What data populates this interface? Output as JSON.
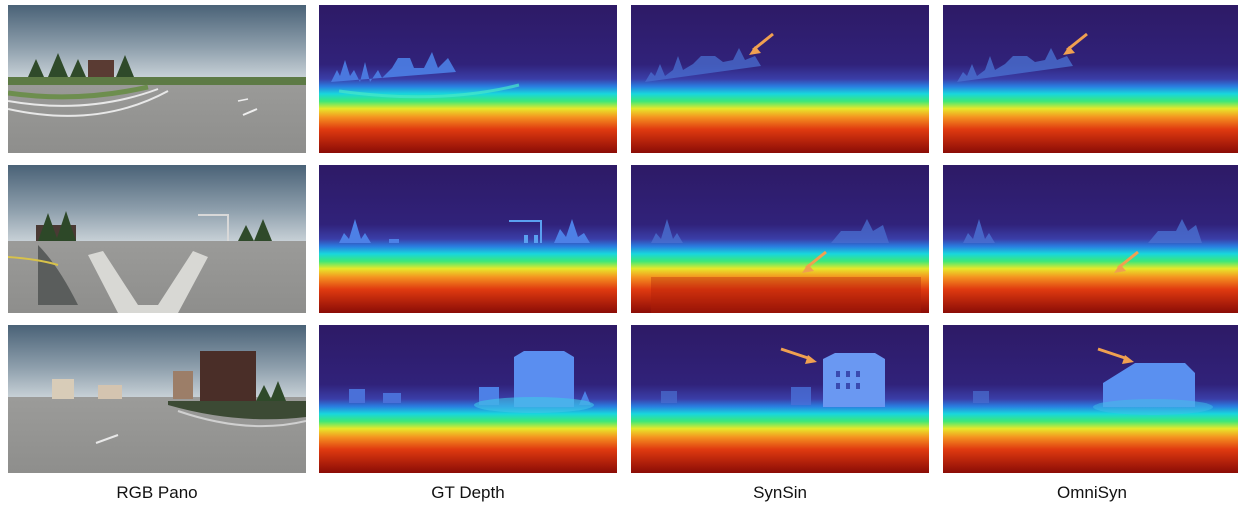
{
  "columns": [
    {
      "label": "RGB Pano"
    },
    {
      "label": "GT Depth"
    },
    {
      "label": "SynSin"
    },
    {
      "label": "OmniSyn"
    }
  ],
  "annotation_arrow_color": "#f0a050",
  "depth_colormap": [
    "#2e1a66",
    "#3a3ea8",
    "#2a7de0",
    "#18d6dd",
    "#3be87a",
    "#e8e82a",
    "#f49020",
    "#e03a10",
    "#8a0c06"
  ],
  "sky_colors": [
    "#4a6277",
    "#8fa0ad",
    "#c7d0d6"
  ],
  "ground_color": "#9c9c9a"
}
